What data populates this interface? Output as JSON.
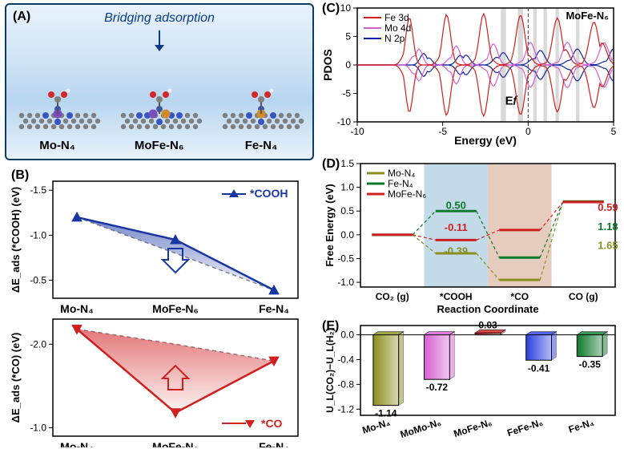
{
  "panelA": {
    "label": "(A)",
    "title": "Bridging adsorption",
    "structures": [
      "Mo-N₄",
      "MoFe-N₆",
      "Fe-N₄"
    ],
    "colors": {
      "border": "#0a3d62",
      "title": "#0a3b8a",
      "arrow": "#0a3b8a",
      "atoms": {
        "C": "#808080",
        "N": "#3a53c4",
        "Mo": "#7a4dbf",
        "Fe": "#d18a2a",
        "O": "#d42626",
        "H": "#f0f0f0"
      }
    }
  },
  "panelB": {
    "label": "(B)",
    "axis_y1": "ΔE_ads (*COOH) (eV)",
    "axis_y2": "ΔE_ads (*CO) (eV)",
    "series_cooh": {
      "label": "*COOH",
      "color": "#1836a3"
    },
    "series_co": {
      "label": "*CO",
      "color": "#d11f1f"
    },
    "categories": [
      "Mo-N₄",
      "MoFe-N₆",
      "Fe-N₄"
    ],
    "y1_ticks": [
      -1.5,
      -1.0,
      -0.5
    ],
    "y2_ticks": [
      -2.0,
      -1.0
    ],
    "cooh_values": [
      -1.2,
      -0.95,
      -0.39
    ],
    "cooh_baseline": [
      -1.2,
      -0.8,
      -0.39
    ],
    "co_values": [
      -2.18,
      -1.18,
      -1.8
    ],
    "co_baseline": [
      -2.18,
      -2.0,
      -1.8
    ],
    "arrow_color_up": "#1836a3",
    "arrow_color_down": "#d11f1f"
  },
  "panelC": {
    "label": "(C)",
    "title_corner": "MoFe-N₆",
    "x_label": "Energy (eV)",
    "y_label": "PDOS",
    "x_ticks": [
      -10,
      -5,
      0,
      5
    ],
    "y_ticks": [
      -10,
      -5,
      0,
      5,
      10
    ],
    "ef_label": "E𝑓",
    "legend": [
      {
        "name": "Fe 3d",
        "color": "#d11f1f"
      },
      {
        "name": "Mo 4d",
        "color": "#d65fd2"
      },
      {
        "name": "N 2p",
        "color": "#1025a5"
      }
    ],
    "highlight_color": "#c0c0c0",
    "highlight_bands_x": [
      [
        -1.6,
        -1.3
      ],
      [
        -0.6,
        -0.3
      ],
      [
        0.3,
        0.5
      ],
      [
        0.9,
        1.1
      ],
      [
        1.6,
        1.8
      ],
      [
        2.8,
        3.0
      ]
    ],
    "curves": {
      "Fe3d": {
        "color": "#d11f1f",
        "offset": 0,
        "amp": 9
      },
      "Mo4d": {
        "color": "#d65fd2",
        "offset": 0,
        "amp": 4
      },
      "N2p": {
        "color": "#1025a5",
        "offset": 0,
        "amp": 3
      }
    }
  },
  "panelD": {
    "label": "(D)",
    "x_label": "Reaction Coordinate",
    "y_label": "Free Energy (eV)",
    "y_ticks": [
      -1.0,
      -0.5,
      0.0,
      0.5,
      1.0,
      1.5
    ],
    "coords": [
      "CO₂ (g)",
      "*COOH",
      "*CO",
      "CO (g)"
    ],
    "regions": [
      {
        "x": [
          1,
          2
        ],
        "color": "#bcd6e6",
        "opacity": 0.9
      },
      {
        "x": [
          2,
          3
        ],
        "color": "#e3c7b7",
        "opacity": 0.9
      }
    ],
    "series": [
      {
        "name": "Mo-N₄",
        "color": "#8a8f1e",
        "values": [
          0.0,
          -0.39,
          -0.95,
          0.7
        ]
      },
      {
        "name": "Fe-N₄",
        "color": "#0e7a2e",
        "values": [
          0.0,
          0.5,
          -0.48,
          0.7
        ]
      },
      {
        "name": "MoFe-N₆",
        "color": "#d11f1f",
        "values": [
          0.0,
          -0.11,
          0.1,
          0.69
        ]
      }
    ],
    "annotations": [
      {
        "text": "0.50",
        "color": "#0e7a2e",
        "xi": 1,
        "y": 0.55
      },
      {
        "text": "-0.11",
        "color": "#d11f1f",
        "xi": 1,
        "y": 0.08
      },
      {
        "text": "-0.39",
        "color": "#8a8f1e",
        "xi": 1,
        "y": -0.42
      },
      {
        "text": "0.59",
        "color": "#d11f1f",
        "xi": 3,
        "y": 0.5
      },
      {
        "text": "1.18",
        "color": "#0e7a2e",
        "xi": 3,
        "y": 0.1
      },
      {
        "text": "1.65",
        "color": "#8a8f1e",
        "xi": 3,
        "y": -0.3
      }
    ]
  },
  "panelE": {
    "label": "(E)",
    "y_label": "U_L(CO₂)−U_L(H₂)",
    "y_ticks": [
      -1.2,
      -0.8,
      -0.4,
      0.0
    ],
    "bars": [
      {
        "name": "Mo-N₄",
        "value": -1.14,
        "color": "#8a8f1e"
      },
      {
        "name": "MoMo-N₆",
        "value": -0.72,
        "color": "#d65fd2"
      },
      {
        "name": "MoFe-N₆",
        "value": 0.03,
        "color": "#d11f1f"
      },
      {
        "name": "FeFe-N₆",
        "value": -0.41,
        "color": "#2a3fe0"
      },
      {
        "name": "Fe-N₄",
        "value": -0.35,
        "color": "#0e7a2e"
      }
    ]
  }
}
